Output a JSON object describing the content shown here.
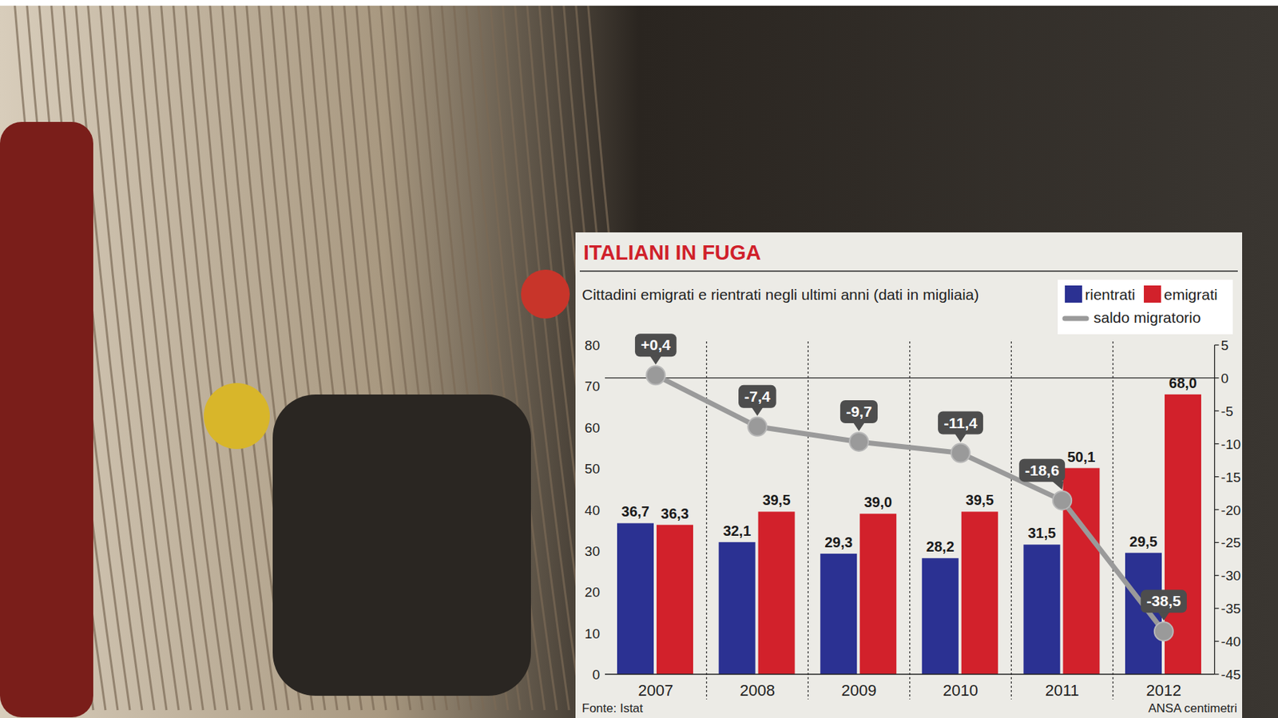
{
  "chart_data": {
    "type": "bar",
    "title": "ITALIANI IN FUGA",
    "subtitle": "Cittadini emigrati e rientrati negli ultimi anni (dati in migliaia)",
    "annotations": [
      "Fonte: Istat",
      "ANSA centimetri"
    ],
    "categories": [
      "2007",
      "2008",
      "2009",
      "2010",
      "2011",
      "2012"
    ],
    "series": [
      {
        "name": "rientrati",
        "color": "#2b3192",
        "values": [
          36.7,
          32.1,
          29.3,
          28.2,
          31.5,
          29.5
        ],
        "value_labels": [
          "36,7",
          "32,1",
          "29,3",
          "28,2",
          "31,5",
          "29,5"
        ]
      },
      {
        "name": "emigrati",
        "color": "#d2212b",
        "values": [
          36.3,
          39.5,
          39.0,
          39.5,
          50.1,
          68.0
        ],
        "value_labels": [
          "36,3",
          "39,5",
          "39,0",
          "39,5",
          "50,1",
          "68,0"
        ]
      },
      {
        "name": "saldo migratorio",
        "type": "line",
        "axis": "y2",
        "color": "#9a9a9a",
        "marker": "circle",
        "values": [
          0.4,
          -7.4,
          -9.7,
          -11.4,
          -18.6,
          -38.5
        ],
        "value_labels": [
          "+0,4",
          "-7,4",
          "-9,7",
          "-11,4",
          "-18,6",
          "-38,5"
        ]
      }
    ],
    "ylim": [
      0,
      80
    ],
    "yticks": [
      0,
      10,
      20,
      30,
      40,
      50,
      60,
      70,
      80
    ],
    "y2lim": [
      -45,
      5
    ],
    "y2ticks": [
      5,
      0,
      -5,
      -10,
      -15,
      -20,
      -25,
      -30,
      -35,
      -40,
      -45
    ],
    "legend": "upper right",
    "data_labels": true,
    "grid": false
  }
}
